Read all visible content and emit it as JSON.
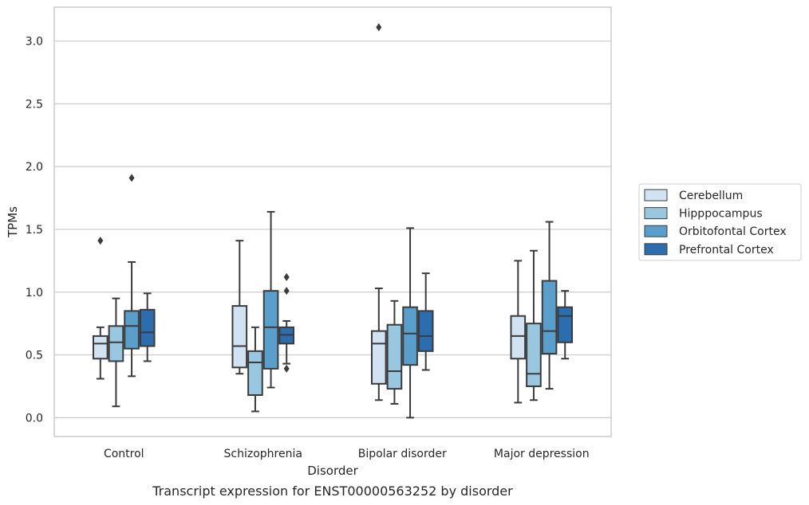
{
  "chart_data": {
    "type": "box",
    "title": "",
    "caption": "Transcript expression for ENST00000563252 by disorder",
    "xlabel": "Disorder",
    "ylabel": "TPMs",
    "ylim": [
      -0.15,
      3.27
    ],
    "yticks": [
      "0.0",
      "0.5",
      "1.0",
      "1.5",
      "2.0",
      "2.5",
      "3.0"
    ],
    "grid": "horizontal",
    "legend_position": "right",
    "categories": [
      "Control",
      "Schizophrenia",
      "Bipolar disorder",
      "Major depression"
    ],
    "series": [
      {
        "name": "Cerebellum",
        "color": "#d1e2f2",
        "boxes": [
          {
            "whislo": 0.31,
            "q1": 0.47,
            "med": 0.59,
            "q3": 0.65,
            "whishi": 0.72,
            "fliers": [
              1.41
            ]
          },
          {
            "whislo": 0.35,
            "q1": 0.4,
            "med": 0.57,
            "q3": 0.89,
            "whishi": 1.41,
            "fliers": []
          },
          {
            "whislo": 0.14,
            "q1": 0.27,
            "med": 0.59,
            "q3": 0.69,
            "whishi": 1.03,
            "fliers": [
              3.11
            ]
          },
          {
            "whislo": 0.12,
            "q1": 0.47,
            "med": 0.65,
            "q3": 0.81,
            "whishi": 1.25,
            "fliers": []
          }
        ]
      },
      {
        "name": "Hipppocampus",
        "color": "#9ac7e0",
        "boxes": [
          {
            "whislo": 0.09,
            "q1": 0.45,
            "med": 0.6,
            "q3": 0.73,
            "whishi": 0.95,
            "fliers": []
          },
          {
            "whislo": 0.05,
            "q1": 0.18,
            "med": 0.44,
            "q3": 0.53,
            "whishi": 0.72,
            "fliers": []
          },
          {
            "whislo": 0.11,
            "q1": 0.23,
            "med": 0.37,
            "q3": 0.74,
            "whishi": 0.93,
            "fliers": []
          },
          {
            "whislo": 0.14,
            "q1": 0.25,
            "med": 0.35,
            "q3": 0.75,
            "whishi": 1.33,
            "fliers": []
          }
        ]
      },
      {
        "name": "Orbitofontal Cortex",
        "color": "#5a9ecc",
        "boxes": [
          {
            "whislo": 0.33,
            "q1": 0.55,
            "med": 0.73,
            "q3": 0.85,
            "whishi": 1.24,
            "fliers": [
              1.91
            ]
          },
          {
            "whislo": 0.24,
            "q1": 0.39,
            "med": 0.72,
            "q3": 1.01,
            "whishi": 1.64,
            "fliers": []
          },
          {
            "whislo": 0.0,
            "q1": 0.42,
            "med": 0.67,
            "q3": 0.88,
            "whishi": 1.51,
            "fliers": []
          },
          {
            "whislo": 0.23,
            "q1": 0.51,
            "med": 0.69,
            "q3": 1.09,
            "whishi": 1.56,
            "fliers": []
          }
        ]
      },
      {
        "name": "Prefrontal Cortex",
        "color": "#2a6eb0",
        "boxes": [
          {
            "whislo": 0.45,
            "q1": 0.57,
            "med": 0.68,
            "q3": 0.86,
            "whishi": 0.99,
            "fliers": []
          },
          {
            "whislo": 0.43,
            "q1": 0.59,
            "med": 0.66,
            "q3": 0.72,
            "whishi": 0.77,
            "fliers": [
              1.12,
              1.01,
              0.39
            ]
          },
          {
            "whislo": 0.38,
            "q1": 0.53,
            "med": 0.65,
            "q3": 0.85,
            "whishi": 1.15,
            "fliers": []
          },
          {
            "whislo": 0.47,
            "q1": 0.6,
            "med": 0.81,
            "q3": 0.88,
            "whishi": 1.01,
            "fliers": []
          }
        ]
      }
    ]
  }
}
